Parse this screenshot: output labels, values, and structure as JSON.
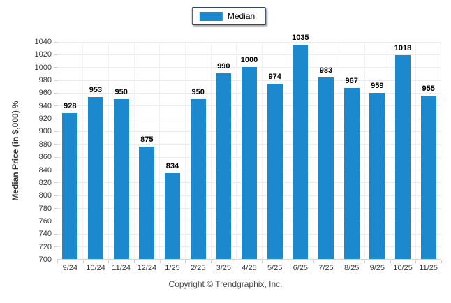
{
  "chart_data": {
    "type": "bar",
    "title": "",
    "categories": [
      "9/24",
      "10/24",
      "11/24",
      "12/24",
      "1/25",
      "2/25",
      "3/25",
      "4/25",
      "5/25",
      "6/25",
      "7/25",
      "8/25",
      "9/25",
      "10/25",
      "11/25"
    ],
    "values": [
      928,
      953,
      950,
      875,
      834,
      950,
      990,
      1000,
      974,
      1035,
      983,
      967,
      959,
      1018,
      955
    ],
    "legend": [
      {
        "name": "Median",
        "color": "#1c88ce"
      }
    ],
    "xlabel": "",
    "ylabel": "Median Price (in $,000) %",
    "ylim": [
      700,
      1040
    ],
    "ytick_step": 20,
    "grid": true,
    "legend_position": "top-center",
    "bar_color": "#1c88ce",
    "footer": "Copyright © Trendgraphix, Inc."
  }
}
